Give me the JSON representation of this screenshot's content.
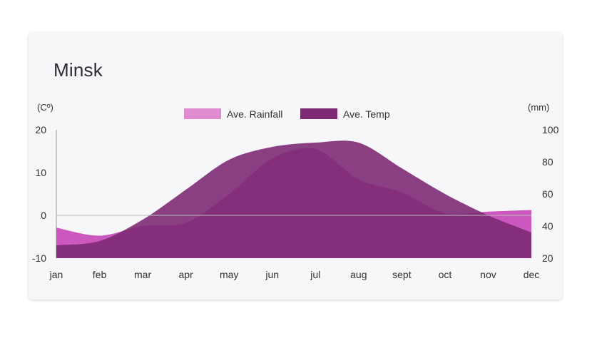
{
  "colors": {
    "rainfall": "#c94fbc",
    "rainfall_legend": "#e08ad2",
    "temp": "#7d2a74",
    "zero_line": "#bbbbbb"
  },
  "chart_data": {
    "type": "area",
    "title": "Minsk",
    "categories": [
      "jan",
      "feb",
      "mar",
      "apr",
      "may",
      "jun",
      "jul",
      "aug",
      "sept",
      "oct",
      "nov",
      "dec"
    ],
    "series": [
      {
        "name": "Ave. Rainfall",
        "axis": "right",
        "values": [
          39,
          34,
          40,
          42,
          60,
          82,
          88,
          69,
          61,
          48,
          49,
          50
        ]
      },
      {
        "name": "Ave. Temp",
        "axis": "left",
        "values": [
          -7,
          -6,
          -1,
          6,
          13,
          16,
          17,
          17,
          11,
          5,
          0,
          -4
        ]
      }
    ],
    "y_left": {
      "unit": "(Cº)",
      "ticks": [
        "20",
        "10",
        "0",
        "-10"
      ],
      "min": -10,
      "max": 20
    },
    "y_right": {
      "unit": "(mm)",
      "ticks": [
        "100",
        "80",
        "60",
        "40",
        "20"
      ],
      "min": 20,
      "max": 100
    },
    "legend_position": "top-center",
    "zero_line": true
  }
}
